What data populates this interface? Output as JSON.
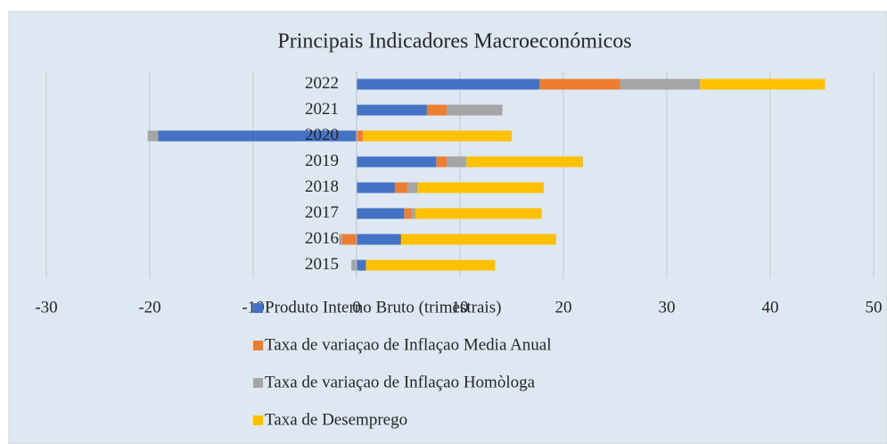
{
  "chart_data": {
    "type": "stacked_barh",
    "title": "Principais Indicadores Macroeconómicos",
    "categories": [
      "2015",
      "2016",
      "2017",
      "2018",
      "2019",
      "2020",
      "2021",
      "2022"
    ],
    "series": [
      {
        "name": "Produto Interno Bruto (trimestrais)",
        "color": "#4472c4",
        "values": [
          0.9,
          4.3,
          4.6,
          3.7,
          7.7,
          -19.2,
          6.8,
          17.7
        ]
      },
      {
        "name": "Taxa de variaçao de Inflaçao Media Anual",
        "color": "#ed7d31",
        "values": [
          0,
          -1.4,
          0.7,
          1.2,
          1.0,
          0.6,
          1.9,
          7.8
        ]
      },
      {
        "name": "Taxa de variaçao de Inflaçao Homòloga",
        "color": "#a5a5a5",
        "values": [
          -0.5,
          -0.3,
          0.4,
          1.0,
          1.9,
          -1.0,
          5.4,
          7.7
        ]
      },
      {
        "name": "Taxa de Desemprego",
        "color": "#ffc000",
        "values": [
          12.5,
          15.0,
          12.2,
          12.2,
          11.3,
          14.4,
          0,
          12.1
        ]
      }
    ],
    "xlim": [
      -30,
      50
    ],
    "xticks": [
      -30,
      -20,
      -10,
      0,
      10,
      20,
      30,
      40,
      50
    ],
    "grid": true
  }
}
